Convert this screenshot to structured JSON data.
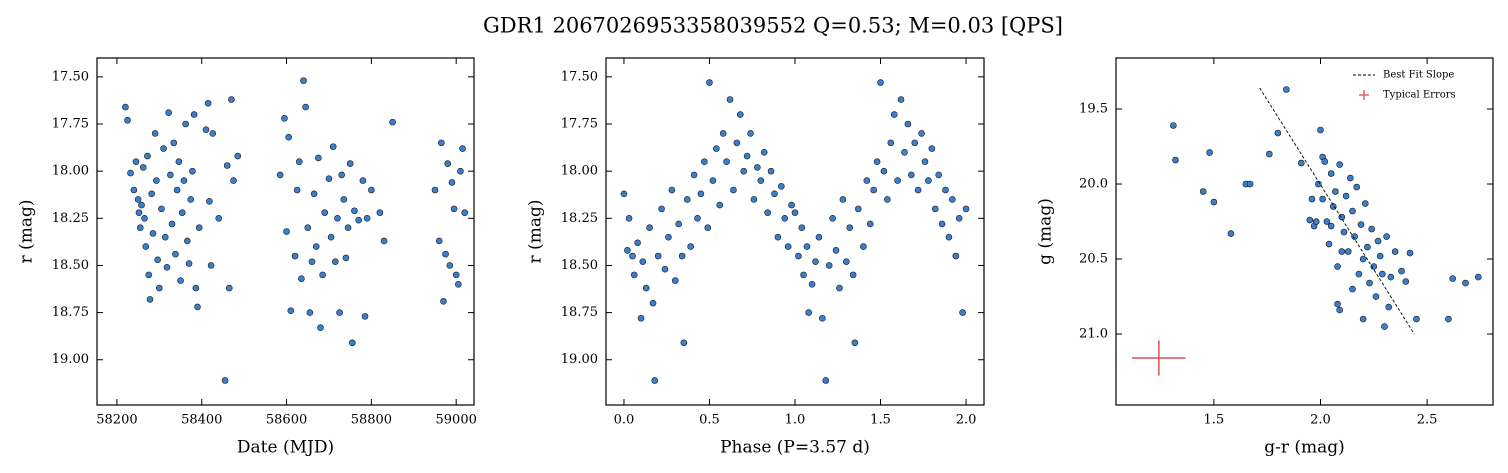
{
  "title": "GDR1 2067026953358039552  Q=0.53; M=0.03 [QPS]",
  "chart_data": [
    {
      "type": "scatter",
      "xlabel": "Date (MJD)",
      "ylabel": "r (mag)",
      "xlim": [
        58153,
        59042
      ],
      "ylim": [
        19.24,
        17.4
      ],
      "xticks": [
        58200,
        58400,
        58600,
        58800,
        59000
      ],
      "yticks": [
        {
          "value": 17.5,
          "label": "17.50"
        },
        17.75,
        {
          "value": 18,
          "label": "18.00"
        },
        18.25,
        {
          "value": 18.5,
          "label": "18.50"
        },
        18.75,
        {
          "value": 19,
          "label": "19.00"
        }
      ],
      "color": "#3a7fcf",
      "x": [
        58220,
        58225,
        58232,
        58240,
        58245,
        58250,
        58252,
        58255,
        58258,
        58262,
        58265,
        58268,
        58272,
        58275,
        58278,
        58282,
        58285,
        58290,
        58293,
        58296,
        58300,
        58305,
        58310,
        58314,
        58318,
        58322,
        58326,
        58330,
        58334,
        58338,
        58342,
        58346,
        58350,
        58354,
        58358,
        58362,
        58366,
        58370,
        58374,
        58378,
        58382,
        58386,
        58390,
        58394,
        58410,
        58415,
        58418,
        58422,
        58426,
        58440,
        58455,
        58460,
        58465,
        58470,
        58475,
        58485,
        58585,
        58595,
        58600,
        58605,
        58610,
        58620,
        58625,
        58630,
        58635,
        58640,
        58645,
        58650,
        58655,
        58660,
        58665,
        58670,
        58675,
        58680,
        58685,
        58690,
        58700,
        58705,
        58710,
        58715,
        58720,
        58725,
        58730,
        58735,
        58740,
        58745,
        58750,
        58755,
        58760,
        58770,
        58780,
        58785,
        58790,
        58800,
        58820,
        58830,
        58850,
        58950,
        58960,
        58965,
        58970,
        58975,
        58980,
        58985,
        58990,
        58995,
        59000,
        59005,
        59010,
        59015,
        59020
      ],
      "values": [
        17.66,
        17.73,
        18.01,
        18.1,
        17.95,
        18.15,
        18.22,
        18.3,
        18.18,
        17.98,
        18.25,
        18.4,
        17.92,
        18.55,
        18.68,
        18.12,
        18.33,
        17.8,
        18.05,
        18.47,
        18.62,
        18.2,
        17.88,
        18.35,
        18.51,
        17.69,
        18.02,
        18.28,
        17.85,
        18.44,
        18.1,
        17.95,
        18.58,
        18.22,
        18.05,
        17.75,
        18.37,
        18.49,
        18.15,
        18.0,
        17.7,
        18.62,
        18.72,
        18.3,
        17.78,
        17.64,
        18.16,
        18.5,
        17.8,
        18.25,
        19.11,
        17.97,
        18.62,
        17.62,
        18.05,
        17.92,
        18.02,
        17.72,
        18.32,
        17.82,
        18.74,
        18.45,
        18.1,
        17.95,
        18.57,
        17.52,
        17.66,
        18.3,
        18.75,
        18.48,
        18.12,
        18.4,
        17.93,
        18.83,
        18.55,
        18.22,
        18.04,
        18.35,
        17.87,
        18.48,
        18.25,
        18.75,
        18.02,
        18.15,
        18.46,
        18.3,
        17.96,
        18.91,
        18.21,
        18.26,
        18.05,
        18.77,
        18.25,
        18.1,
        18.22,
        18.37,
        17.74,
        18.1,
        18.37,
        17.85,
        18.69,
        18.44,
        17.96,
        18.5,
        18.06,
        18.2,
        18.55,
        18.6,
        18.0,
        17.88,
        18.22
      ]
    },
    {
      "type": "scatter",
      "xlabel": "Phase (P=3.57 d)",
      "ylabel": "r (mag)",
      "xlim": [
        -0.105,
        2.105
      ],
      "ylim": [
        19.24,
        17.4
      ],
      "xticks": [
        {
          "value": 0,
          "label": "0.0"
        },
        0.5,
        {
          "value": 1,
          "label": "1.0"
        },
        1.5,
        {
          "value": 2,
          "label": "2.0"
        }
      ],
      "yticks": [
        {
          "value": 17.5,
          "label": "17.50"
        },
        17.75,
        {
          "value": 18,
          "label": "18.00"
        },
        18.25,
        {
          "value": 18.5,
          "label": "18.50"
        },
        18.75,
        {
          "value": 19,
          "label": "19.00"
        }
      ],
      "color": "#3a7fcf",
      "x": [
        0,
        0.02,
        0.03,
        0.05,
        0.06,
        0.08,
        0.1,
        0.11,
        0.13,
        0.15,
        0.17,
        0.18,
        0.2,
        0.22,
        0.24,
        0.26,
        0.28,
        0.3,
        0.32,
        0.34,
        0.35,
        0.37,
        0.39,
        0.41,
        0.43,
        0.45,
        0.47,
        0.49,
        0.5,
        0.52,
        0.54,
        0.56,
        0.58,
        0.6,
        0.62,
        0.64,
        0.66,
        0.68,
        0.7,
        0.72,
        0.74,
        0.76,
        0.78,
        0.8,
        0.82,
        0.84,
        0.86,
        0.88,
        0.9,
        0.92,
        0.94,
        0.96,
        0.98,
        1.0,
        1.02,
        1.04,
        1.05,
        1.07,
        1.08,
        1.1,
        1.12,
        1.14,
        1.16,
        1.18,
        1.2,
        1.22,
        1.24,
        1.26,
        1.28,
        1.3,
        1.32,
        1.34,
        1.35,
        1.37,
        1.4,
        1.42,
        1.44,
        1.46,
        1.48,
        1.5,
        1.52,
        1.54,
        1.56,
        1.58,
        1.6,
        1.62,
        1.64,
        1.66,
        1.68,
        1.7,
        1.72,
        1.74,
        1.76,
        1.78,
        1.8,
        1.82,
        1.84,
        1.86,
        1.88,
        1.9,
        1.92,
        1.94,
        1.96,
        1.98,
        2.0
      ],
      "values": [
        18.12,
        18.42,
        18.25,
        18.45,
        18.55,
        18.38,
        18.78,
        18.48,
        18.62,
        18.3,
        18.7,
        19.11,
        18.45,
        18.2,
        18.52,
        18.35,
        18.1,
        18.58,
        18.28,
        18.45,
        18.91,
        18.15,
        18.4,
        18.02,
        18.25,
        18.12,
        17.95,
        18.3,
        17.53,
        18.05,
        17.88,
        18.18,
        17.8,
        17.95,
        17.62,
        18.1,
        17.85,
        17.7,
        18.0,
        17.92,
        17.8,
        18.15,
        17.98,
        18.05,
        17.9,
        18.22,
        18.0,
        18.12,
        18.35,
        18.08,
        18.25,
        18.4,
        18.18,
        18.22,
        18.45,
        18.3,
        18.55,
        18.4,
        18.75,
        18.6,
        18.48,
        18.35,
        18.78,
        19.11,
        18.5,
        18.25,
        18.42,
        18.62,
        18.15,
        18.48,
        18.3,
        18.55,
        18.91,
        18.2,
        18.4,
        18.05,
        18.28,
        18.1,
        17.95,
        17.53,
        18.0,
        18.15,
        17.85,
        17.7,
        18.05,
        17.62,
        17.9,
        17.75,
        18.02,
        17.85,
        18.1,
        17.8,
        17.95,
        18.05,
        17.88,
        18.2,
        18.02,
        18.28,
        18.1,
        18.35,
        18.15,
        18.45,
        18.25,
        18.75,
        18.2
      ]
    },
    {
      "type": "scatter",
      "xlabel": "g-r (mag)",
      "ylabel": "g (mag)",
      "xlim": [
        1.041,
        2.809
      ],
      "ylim": [
        21.473,
        19.16
      ],
      "xticks": [
        1.5,
        {
          "value": 2,
          "label": "2.0"
        },
        2.5
      ],
      "yticks": [
        19.5,
        {
          "value": 20,
          "label": "20.0"
        },
        20.5,
        {
          "value": 21,
          "label": "21.0"
        }
      ],
      "color": "#3a7fcf",
      "x": [
        1.31,
        1.32,
        1.45,
        1.48,
        1.5,
        1.58,
        1.65,
        1.67,
        1.76,
        1.8,
        1.84,
        1.91,
        1.95,
        1.96,
        1.97,
        1.99,
        2.0,
        2.01,
        2.02,
        2.03,
        2.04,
        2.05,
        2.06,
        2.07,
        2.08,
        2.09,
        2.1,
        2.11,
        2.12,
        2.13,
        2.14,
        2.15,
        2.16,
        2.17,
        2.18,
        2.19,
        2.2,
        2.21,
        2.22,
        2.23,
        2.24,
        2.25,
        2.26,
        2.27,
        2.28,
        2.29,
        2.3,
        2.31,
        2.32,
        2.33,
        2.35,
        2.38,
        2.4,
        2.42,
        2.45,
        2.08,
        2.09,
        2.05,
        2.15,
        2.2,
        2.6,
        2.62,
        2.68,
        2.74,
        1.98,
        2.1,
        2.01
      ],
      "values": [
        19.61,
        19.84,
        20.05,
        19.79,
        20.12,
        20.33,
        20.0,
        20.0,
        19.8,
        19.66,
        19.37,
        19.86,
        20.24,
        20.1,
        20.28,
        20.0,
        19.64,
        19.82,
        19.85,
        20.25,
        20.4,
        19.93,
        20.15,
        20.05,
        20.55,
        19.87,
        20.22,
        20.32,
        20.08,
        20.45,
        19.96,
        20.18,
        20.35,
        20.02,
        20.6,
        20.27,
        20.5,
        20.13,
        20.42,
        20.66,
        20.3,
        20.55,
        20.75,
        20.38,
        20.48,
        20.6,
        20.95,
        20.35,
        20.82,
        20.62,
        20.45,
        20.58,
        20.65,
        20.46,
        20.9,
        20.8,
        20.84,
        20.28,
        20.7,
        20.9,
        20.9,
        20.63,
        20.66,
        20.62,
        20.25,
        20.45,
        20.1
      ],
      "fit": {
        "name": "Best Fit Slope",
        "x": [
          1.715,
          2.44
        ],
        "values": [
          19.36,
          21.0
        ],
        "color": "#000000"
      },
      "typical_error": {
        "name": "Typical Errors",
        "x": 1.242,
        "value": 21.16,
        "xerr": 0.126,
        "yerr": 0.117,
        "color": "#d9534f"
      },
      "legend": "upper right"
    }
  ]
}
